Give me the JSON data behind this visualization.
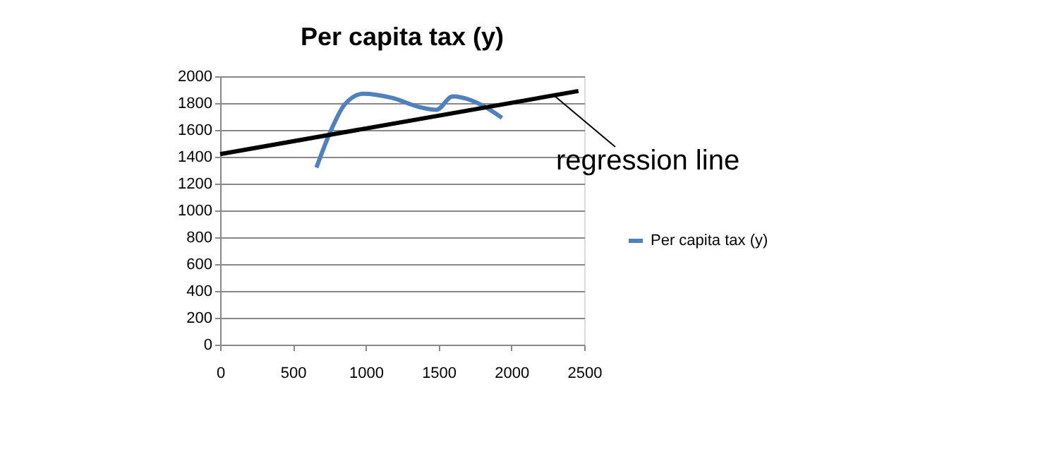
{
  "chart_data": {
    "type": "line",
    "title": "Per capita tax (y)",
    "xlim": [
      0,
      2500
    ],
    "xticks": [
      0,
      500,
      1000,
      1500,
      2000,
      2500
    ],
    "ylim": [
      0,
      2000
    ],
    "yticks": [
      0,
      200,
      400,
      600,
      800,
      1000,
      1200,
      1400,
      1600,
      1800,
      2000
    ],
    "grid": "y",
    "legend": "right",
    "line_style": "solid",
    "series": [
      {
        "name": "Per capita tax (y)",
        "color": "#4f81bd",
        "x": [
          661,
          758,
          855,
          984,
          1177,
          1371,
          1484,
          1597,
          1726,
          1822,
          1935
        ],
        "values": [
          1320,
          1590,
          1790,
          1870,
          1840,
          1770,
          1750,
          1850,
          1820,
          1770,
          1690
        ]
      },
      {
        "type": "line",
        "color": "#000000",
        "x": [
          0,
          2460
        ],
        "values": [
          1420,
          1890
        ]
      }
    ],
    "annotations": [
      {
        "text": "regression line",
        "x": 2300,
        "y": 1850
      }
    ]
  }
}
